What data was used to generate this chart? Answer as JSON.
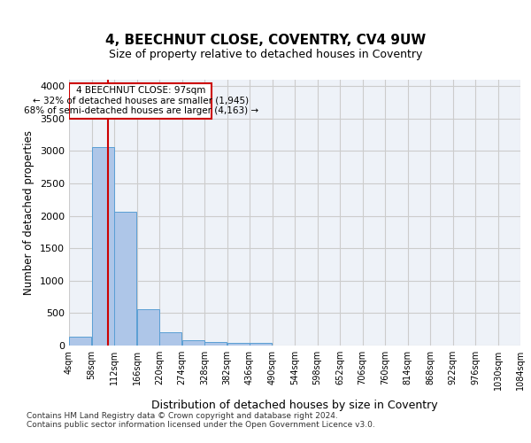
{
  "title1": "4, BEECHNUT CLOSE, COVENTRY, CV4 9UW",
  "title2": "Size of property relative to detached houses in Coventry",
  "xlabel": "Distribution of detached houses by size in Coventry",
  "ylabel": "Number of detached properties",
  "bin_labels": [
    "4sqm",
    "58sqm",
    "112sqm",
    "166sqm",
    "220sqm",
    "274sqm",
    "328sqm",
    "382sqm",
    "436sqm",
    "490sqm",
    "544sqm",
    "598sqm",
    "652sqm",
    "706sqm",
    "760sqm",
    "814sqm",
    "868sqm",
    "922sqm",
    "976sqm",
    "1030sqm",
    "1084sqm"
  ],
  "bar_heights": [
    140,
    3060,
    2060,
    560,
    200,
    80,
    55,
    40,
    40,
    0,
    0,
    0,
    0,
    0,
    0,
    0,
    0,
    0,
    0,
    0
  ],
  "bar_color": "#aec6e8",
  "bar_edge_color": "#5a9fd4",
  "grid_color": "#cccccc",
  "bg_color": "#eef2f8",
  "vline_x": 97,
  "vline_color": "#cc0000",
  "annotation_text": "4 BEECHNUT CLOSE: 97sqm\n← 32% of detached houses are smaller (1,945)\n68% of semi-detached houses are larger (4,163) →",
  "annotation_box_color": "#cc0000",
  "footer1": "Contains HM Land Registry data © Crown copyright and database right 2024.",
  "footer2": "Contains public sector information licensed under the Open Government Licence v3.0.",
  "ylim": [
    0,
    4100
  ],
  "yticks": [
    0,
    500,
    1000,
    1500,
    2000,
    2500,
    3000,
    3500,
    4000
  ],
  "bin_width": 54
}
